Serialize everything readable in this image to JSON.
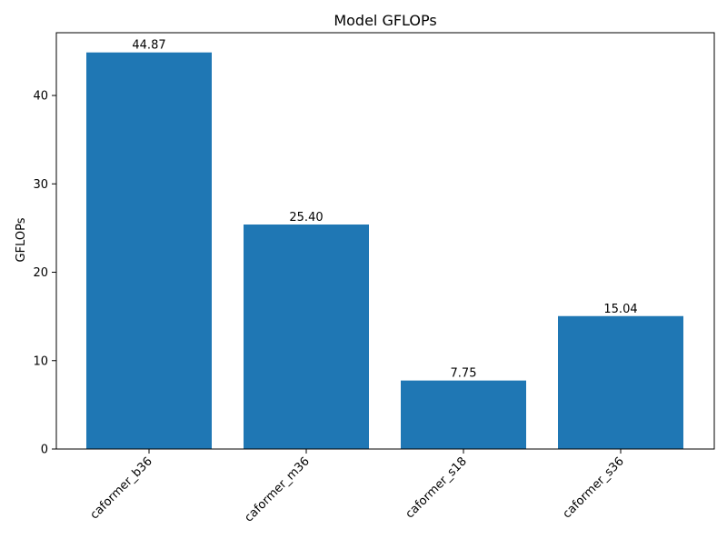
{
  "chart_data": {
    "type": "bar",
    "title": "Model GFLOPs",
    "xlabel": "",
    "ylabel": "GFLOPs",
    "categories": [
      "caformer_b36",
      "caformer_m36",
      "caformer_s18",
      "caformer_s36"
    ],
    "values": [
      44.87,
      25.4,
      7.75,
      15.04
    ],
    "value_labels": [
      "44.87",
      "25.40",
      "7.75",
      "15.04"
    ],
    "ylim": [
      0,
      47.1
    ],
    "yticks": [
      0,
      10,
      20,
      30,
      40
    ],
    "ytick_labels": [
      "0",
      "10",
      "20",
      "30",
      "40"
    ],
    "bar_color": "#1f77b4",
    "grid": false,
    "xtick_rotation": "45"
  }
}
